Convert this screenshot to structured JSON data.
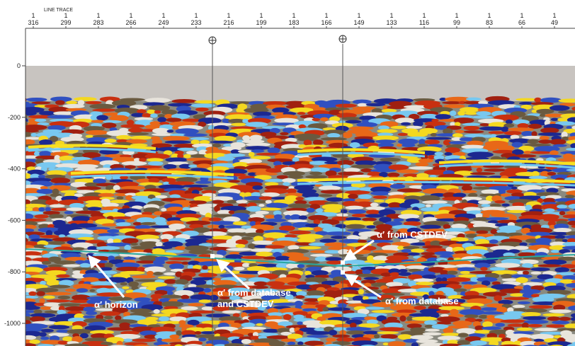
{
  "header": {
    "label": "LINE TRACE",
    "traces": [
      {
        "top": "1",
        "bottom": "316"
      },
      {
        "top": "1",
        "bottom": "299"
      },
      {
        "top": "1",
        "bottom": "283"
      },
      {
        "top": "1",
        "bottom": "266"
      },
      {
        "top": "1",
        "bottom": "249"
      },
      {
        "top": "1",
        "bottom": "233"
      },
      {
        "top": "1",
        "bottom": "216"
      },
      {
        "top": "1",
        "bottom": "199"
      },
      {
        "top": "1",
        "bottom": "183"
      },
      {
        "top": "1",
        "bottom": "166"
      },
      {
        "top": "1",
        "bottom": "149"
      },
      {
        "top": "1",
        "bottom": "133"
      },
      {
        "top": "1",
        "bottom": "116"
      },
      {
        "top": "1",
        "bottom": "99"
      },
      {
        "top": "1",
        "bottom": "83"
      },
      {
        "top": "1",
        "bottom": "66"
      },
      {
        "top": "1",
        "bottom": "49"
      }
    ]
  },
  "depth_axis": {
    "labels": [
      "0",
      "-200",
      "-400",
      "-600",
      "-800",
      "-1000"
    ]
  },
  "annotations": {
    "horizon": "α′ horizon",
    "database_cstdev": [
      "α′ from database",
      "and CSTDEV"
    ],
    "cstdev": "α′ from CSTDEV",
    "database": "α′ from database"
  }
}
